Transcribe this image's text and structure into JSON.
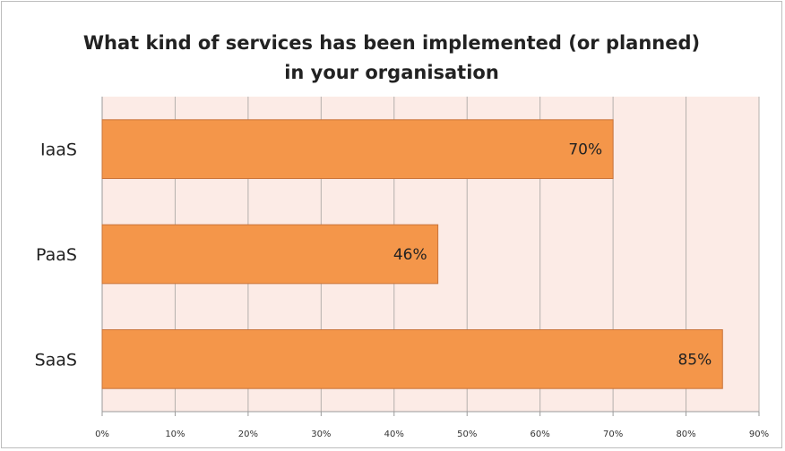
{
  "chart_data": {
    "type": "bar",
    "orientation": "horizontal",
    "title_lines": [
      "What kind of services has been implemented (or planned)",
      "in your organisation"
    ],
    "categories": [
      "IaaS",
      "PaaS",
      "SaaS"
    ],
    "values": [
      70,
      46,
      85
    ],
    "value_labels": [
      "70%",
      "46%",
      "85%"
    ],
    "xlim": [
      0,
      90
    ],
    "xticks": [
      0,
      10,
      20,
      30,
      40,
      50,
      60,
      70,
      80,
      90
    ],
    "xtick_labels": [
      "0%",
      "10%",
      "20%",
      "30%",
      "40%",
      "50%",
      "60%",
      "70%",
      "80%",
      "90%"
    ],
    "xlabel": "",
    "ylabel": "",
    "grid": "vertical",
    "legend": "none",
    "colors": {
      "bar": "#f4964a",
      "bar_border": "#c9743a",
      "plot_background": "#fcebe6",
      "gridline": "#b5b0ad",
      "axis": "#9a9a9a"
    }
  }
}
